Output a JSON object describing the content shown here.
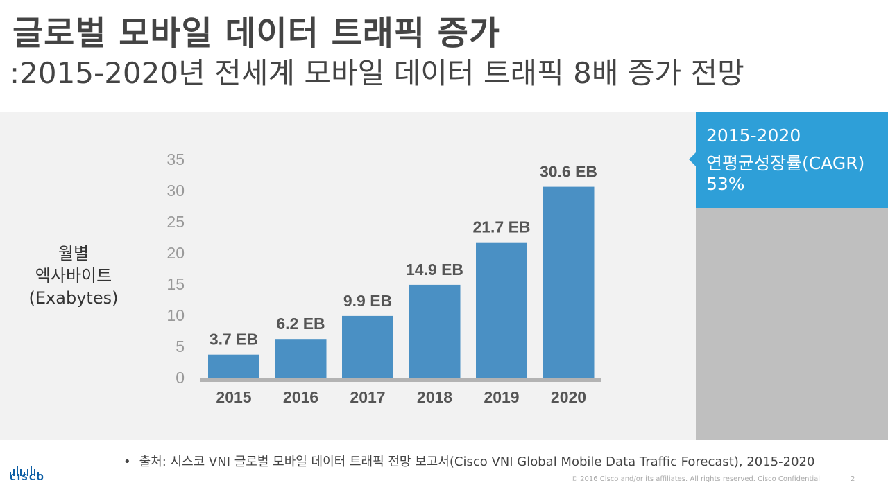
{
  "header": {
    "title": "글로벌 모바일 데이터 트래픽 증가",
    "subtitle": ":2015-2020년 전세계 모바일 데이터 트래픽 8배 증가 전망"
  },
  "y_axis_label": {
    "line1": "월별",
    "line2": "엑사바이트",
    "line3": "(Exabytes)"
  },
  "callout": {
    "line1": "2015-2020",
    "line2": "연평균성장률(CAGR)",
    "line3": "53%"
  },
  "chart_data": {
    "type": "bar",
    "title": "",
    "xlabel": "",
    "ylabel": "월별 엑사바이트 (Exabytes)",
    "categories": [
      "2015",
      "2016",
      "2017",
      "2018",
      "2019",
      "2020"
    ],
    "values": [
      3.7,
      6.2,
      9.9,
      14.9,
      21.7,
      30.6
    ],
    "data_labels": [
      "3.7 EB",
      "6.2 EB",
      "9.9 EB",
      "14.9 EB",
      "21.7 EB",
      "30.6 EB"
    ],
    "ylim": [
      0,
      35
    ],
    "yticks": [
      "0",
      "5",
      "10",
      "15",
      "20",
      "25",
      "30",
      "35"
    ],
    "grid": false,
    "bar_color": "#4a90c4"
  },
  "footer": {
    "bullet": "•",
    "source": "출처: 시스코 VNI 글로벌 모바일 데이터 트래픽 전망 보고서(Cisco VNI Global Mobile Data Traffic Forecast), 2015-2020",
    "copyright": "© 2016  Cisco and/or its affiliates. All rights reserved.   Cisco Confidential",
    "page_number": "2",
    "logo_text": "CISCO"
  },
  "colors": {
    "callout_bg": "#2e9fd8",
    "panel_bg": "#f2f2f2",
    "side_gray": "#bfbfbf",
    "logo": "#0e5fa5"
  }
}
